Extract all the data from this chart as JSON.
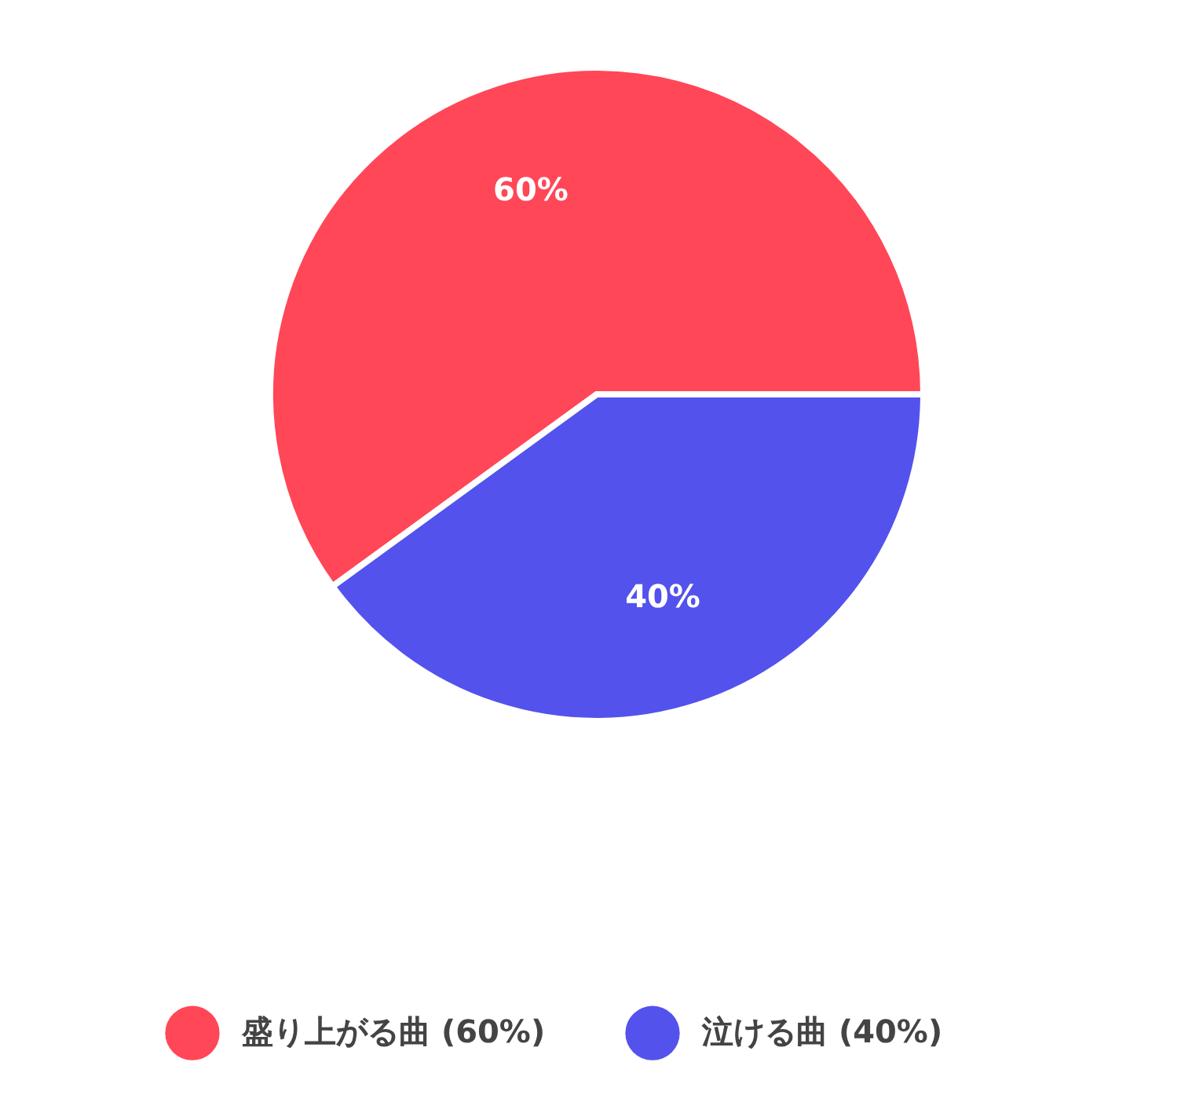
{
  "chart_data": {
    "type": "pie",
    "categories": [
      "盛り上がる曲 (60%)",
      "泣ける曲 (40%)"
    ],
    "values": [
      60,
      40
    ],
    "colors": [
      "#ff4757",
      "#5352ed"
    ],
    "value_labels": [
      "60%",
      "40%"
    ],
    "legend": "bottom"
  }
}
